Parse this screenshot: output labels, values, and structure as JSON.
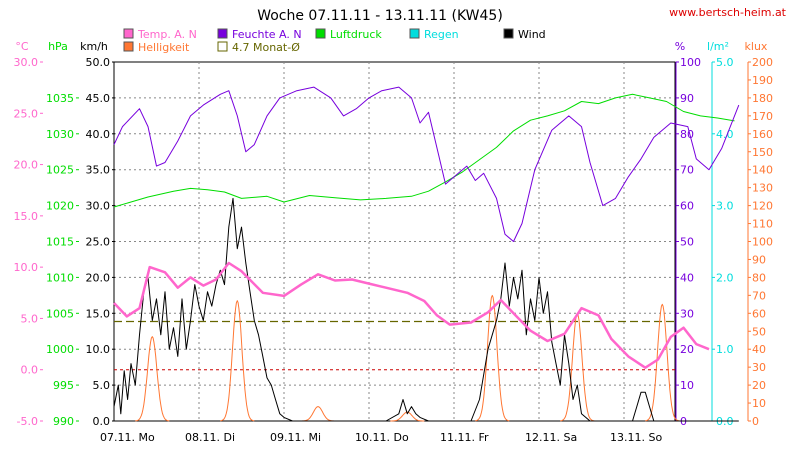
{
  "chart_data": {
    "type": "line",
    "title": "Woche 07.11.11 - 13.11.11 (KW45)",
    "source": "www.bertsch-heim.at",
    "colors": {
      "temp": "#ff66cc",
      "feuchte": "#7700dd",
      "luftdruck": "#00dd00",
      "regen": "#00dddd",
      "wind": "#000000",
      "helligkeit": "#ff7733",
      "monat": "#666600",
      "grid": "#888888",
      "zero": "#cc0000",
      "source": "#dd0000"
    },
    "legend": [
      {
        "key": "temp",
        "label": "Temp. A. N"
      },
      {
        "key": "feuchte",
        "label": "Feuchte A. N"
      },
      {
        "key": "luftdruck",
        "label": "Luftdruck"
      },
      {
        "key": "regen",
        "label": "Regen"
      },
      {
        "key": "wind",
        "label": "Wind"
      },
      {
        "key": "helligkeit",
        "label": "Helligkeit"
      },
      {
        "key": "monat",
        "label": "4.7 Monat-Ø"
      }
    ],
    "axes": {
      "temp": {
        "unit": "°C",
        "min": -5,
        "max": 30,
        "ticks": [
          "30.0",
          "25.0",
          "20.0",
          "15.0",
          "10.0",
          "5.0",
          "0.0",
          "-5.0"
        ]
      },
      "pressure": {
        "unit": "hPa",
        "min": 990,
        "max": 1040,
        "ticks": [
          "1035",
          "1030",
          "1025",
          "1020",
          "1015",
          "1010",
          "1005",
          "1000",
          "995",
          "990"
        ]
      },
      "wind": {
        "unit": "km/h",
        "min": 0,
        "max": 50,
        "ticks": [
          "50.0",
          "45.0",
          "40.0",
          "35.0",
          "30.0",
          "25.0",
          "20.0",
          "15.0",
          "10.0",
          "5.0",
          "0.0"
        ]
      },
      "humidity": {
        "unit": "%",
        "min": 0,
        "max": 100,
        "ticks": [
          "100",
          "90",
          "80",
          "70",
          "60",
          "50",
          "40",
          "30",
          "20",
          "10",
          "0"
        ]
      },
      "rain": {
        "unit": "l/m²",
        "min": 0,
        "max": 5,
        "ticks": [
          "5.0",
          "4.0",
          "3.0",
          "2.0",
          "1.0",
          "0.0"
        ]
      },
      "lux": {
        "unit": "klux",
        "min": 0,
        "max": 200,
        "ticks": [
          "200",
          "190",
          "180",
          "170",
          "160",
          "150",
          "140",
          "130",
          "120",
          "110",
          "100",
          "90",
          "80",
          "70",
          "60",
          "50",
          "40",
          "30",
          "20",
          "10",
          "0"
        ]
      }
    },
    "days": [
      "07.11. Mo",
      "08.11. Di",
      "09.11. Mi",
      "10.11. Do",
      "11.11. Fr",
      "12.11. Sa",
      "13.11. So"
    ],
    "x_range": [
      0,
      7
    ],
    "month_avg_temp": 4.7,
    "series": {
      "temp": [
        [
          0,
          6.5
        ],
        [
          0.15,
          5.2
        ],
        [
          0.3,
          6.0
        ],
        [
          0.42,
          10.0
        ],
        [
          0.6,
          9.5
        ],
        [
          0.75,
          8.0
        ],
        [
          0.9,
          9.0
        ],
        [
          1.05,
          8.2
        ],
        [
          1.2,
          8.8
        ],
        [
          1.35,
          10.4
        ],
        [
          1.5,
          9.6
        ],
        [
          1.75,
          7.5
        ],
        [
          2.0,
          7.2
        ],
        [
          2.2,
          8.3
        ],
        [
          2.4,
          9.3
        ],
        [
          2.6,
          8.7
        ],
        [
          2.8,
          8.8
        ],
        [
          3.0,
          8.4
        ],
        [
          3.2,
          8.0
        ],
        [
          3.45,
          7.5
        ],
        [
          3.65,
          6.7
        ],
        [
          3.8,
          5.3
        ],
        [
          3.95,
          4.4
        ],
        [
          4.2,
          4.6
        ],
        [
          4.4,
          5.6
        ],
        [
          4.55,
          6.8
        ],
        [
          4.7,
          5.5
        ],
        [
          4.9,
          3.8
        ],
        [
          5.1,
          2.8
        ],
        [
          5.3,
          3.5
        ],
        [
          5.5,
          6.0
        ],
        [
          5.7,
          5.3
        ],
        [
          5.85,
          3.0
        ],
        [
          6.05,
          1.3
        ],
        [
          6.25,
          0.2
        ],
        [
          6.4,
          1.0
        ],
        [
          6.55,
          3.2
        ],
        [
          6.7,
          4.1
        ],
        [
          6.85,
          2.5
        ],
        [
          7.0,
          2.0
        ]
      ],
      "feuchte": [
        [
          0,
          77
        ],
        [
          0.1,
          82
        ],
        [
          0.3,
          87
        ],
        [
          0.4,
          82
        ],
        [
          0.5,
          71
        ],
        [
          0.6,
          72
        ],
        [
          0.75,
          78
        ],
        [
          0.9,
          85
        ],
        [
          1.05,
          88
        ],
        [
          1.25,
          91
        ],
        [
          1.35,
          92
        ],
        [
          1.45,
          85
        ],
        [
          1.55,
          75
        ],
        [
          1.65,
          77
        ],
        [
          1.8,
          85
        ],
        [
          1.95,
          90
        ],
        [
          2.15,
          92
        ],
        [
          2.35,
          93
        ],
        [
          2.55,
          90
        ],
        [
          2.7,
          85
        ],
        [
          2.85,
          87
        ],
        [
          3.0,
          90
        ],
        [
          3.15,
          92
        ],
        [
          3.35,
          93
        ],
        [
          3.5,
          90
        ],
        [
          3.6,
          83
        ],
        [
          3.7,
          86
        ],
        [
          3.82,
          74
        ],
        [
          3.9,
          66
        ],
        [
          4.0,
          68
        ],
        [
          4.15,
          71
        ],
        [
          4.25,
          67
        ],
        [
          4.35,
          69
        ],
        [
          4.5,
          62
        ],
        [
          4.6,
          52
        ],
        [
          4.7,
          50
        ],
        [
          4.8,
          55
        ],
        [
          4.95,
          70
        ],
        [
          5.15,
          81
        ],
        [
          5.35,
          85
        ],
        [
          5.5,
          82
        ],
        [
          5.6,
          72
        ],
        [
          5.75,
          60
        ],
        [
          5.9,
          62
        ],
        [
          6.05,
          68
        ],
        [
          6.2,
          73
        ],
        [
          6.35,
          79
        ],
        [
          6.55,
          83
        ],
        [
          6.75,
          82
        ],
        [
          6.85,
          73
        ],
        [
          7.0,
          70
        ],
        [
          7.15,
          76
        ],
        [
          7.25,
          82
        ],
        [
          7.35,
          88
        ]
      ],
      "luftdruck": [
        [
          0,
          1019.8
        ],
        [
          0.2,
          1020.5
        ],
        [
          0.4,
          1021.2
        ],
        [
          0.7,
          1022.0
        ],
        [
          0.9,
          1022.4
        ],
        [
          1.1,
          1022.2
        ],
        [
          1.3,
          1021.9
        ],
        [
          1.5,
          1021.0
        ],
        [
          1.8,
          1021.3
        ],
        [
          2.0,
          1020.5
        ],
        [
          2.3,
          1021.4
        ],
        [
          2.6,
          1021.1
        ],
        [
          2.9,
          1020.8
        ],
        [
          3.2,
          1021.0
        ],
        [
          3.5,
          1021.3
        ],
        [
          3.7,
          1022.0
        ],
        [
          3.9,
          1023.3
        ],
        [
          4.1,
          1024.7
        ],
        [
          4.3,
          1026.4
        ],
        [
          4.5,
          1028.1
        ],
        [
          4.7,
          1030.4
        ],
        [
          4.9,
          1031.9
        ],
        [
          5.1,
          1032.5
        ],
        [
          5.3,
          1033.2
        ],
        [
          5.5,
          1034.5
        ],
        [
          5.7,
          1034.2
        ],
        [
          5.9,
          1035.0
        ],
        [
          6.1,
          1035.5
        ],
        [
          6.3,
          1035.0
        ],
        [
          6.5,
          1034.5
        ],
        [
          6.7,
          1033.1
        ],
        [
          6.9,
          1032.5
        ],
        [
          7.1,
          1032.2
        ],
        [
          7.3,
          1031.8
        ]
      ]
    },
    "wind_points": [
      [
        0,
        2
      ],
      [
        0.05,
        5
      ],
      [
        0.08,
        1
      ],
      [
        0.12,
        7
      ],
      [
        0.16,
        3
      ],
      [
        0.2,
        8
      ],
      [
        0.25,
        5
      ],
      [
        0.3,
        12
      ],
      [
        0.35,
        18
      ],
      [
        0.4,
        20
      ],
      [
        0.45,
        14
      ],
      [
        0.5,
        17
      ],
      [
        0.55,
        12
      ],
      [
        0.6,
        18
      ],
      [
        0.65,
        10
      ],
      [
        0.7,
        13
      ],
      [
        0.75,
        9
      ],
      [
        0.8,
        17
      ],
      [
        0.85,
        10
      ],
      [
        0.9,
        14
      ],
      [
        0.95,
        19
      ],
      [
        1.0,
        16
      ],
      [
        1.05,
        14
      ],
      [
        1.1,
        18
      ],
      [
        1.15,
        16
      ],
      [
        1.2,
        19
      ],
      [
        1.25,
        21
      ],
      [
        1.3,
        19
      ],
      [
        1.35,
        27
      ],
      [
        1.4,
        31
      ],
      [
        1.45,
        24
      ],
      [
        1.5,
        27
      ],
      [
        1.55,
        22
      ],
      [
        1.6,
        18
      ],
      [
        1.65,
        14
      ],
      [
        1.7,
        12
      ],
      [
        1.75,
        9
      ],
      [
        1.8,
        6
      ],
      [
        1.85,
        5
      ],
      [
        1.9,
        3
      ],
      [
        1.95,
        1
      ],
      [
        2.0,
        0.5
      ],
      [
        2.1,
        0
      ],
      [
        2.4,
        0
      ],
      [
        2.7,
        0
      ],
      [
        3.0,
        0
      ],
      [
        3.2,
        0
      ],
      [
        3.35,
        1
      ],
      [
        3.4,
        3
      ],
      [
        3.45,
        1
      ],
      [
        3.5,
        2
      ],
      [
        3.55,
        1
      ],
      [
        3.6,
        0.5
      ],
      [
        3.7,
        0
      ],
      [
        4.0,
        0
      ],
      [
        4.2,
        0
      ],
      [
        4.3,
        3
      ],
      [
        4.4,
        10
      ],
      [
        4.5,
        14
      ],
      [
        4.55,
        17
      ],
      [
        4.6,
        22
      ],
      [
        4.65,
        16
      ],
      [
        4.7,
        20
      ],
      [
        4.75,
        17
      ],
      [
        4.8,
        21
      ],
      [
        4.85,
        12
      ],
      [
        4.9,
        17
      ],
      [
        4.95,
        14
      ],
      [
        5.0,
        20
      ],
      [
        5.05,
        15
      ],
      [
        5.1,
        18
      ],
      [
        5.15,
        11
      ],
      [
        5.2,
        8
      ],
      [
        5.25,
        5
      ],
      [
        5.3,
        12
      ],
      [
        5.35,
        8
      ],
      [
        5.4,
        3
      ],
      [
        5.45,
        5
      ],
      [
        5.5,
        1
      ],
      [
        5.6,
        0
      ],
      [
        5.9,
        0
      ],
      [
        6.1,
        0
      ],
      [
        6.15,
        2
      ],
      [
        6.2,
        4
      ],
      [
        6.25,
        4
      ],
      [
        6.3,
        2
      ],
      [
        6.35,
        0
      ],
      [
        7.0,
        0
      ],
      [
        7.35,
        0
      ]
    ],
    "lux_peaks": [
      [
        0.45,
        47
      ],
      [
        1.45,
        67
      ],
      [
        2.4,
        8
      ],
      [
        3.45,
        5
      ],
      [
        4.45,
        70
      ],
      [
        5.45,
        60
      ],
      [
        6.45,
        65
      ]
    ]
  }
}
